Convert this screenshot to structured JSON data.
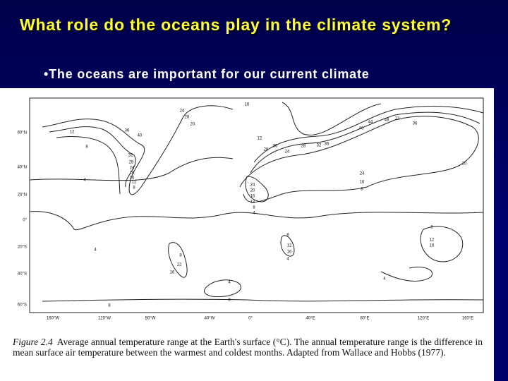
{
  "slide": {
    "title": "What role do the oceans play in the climate system?",
    "bullet": "•The oceans are important for our current climate",
    "figure": {
      "lat_labels": [
        "60°N",
        "40°N",
        "20°N",
        "0°",
        "20°S",
        "40°S",
        "60°S"
      ],
      "lon_labels": [
        "160°W",
        "120°W",
        "80°W",
        "40°W",
        "0°",
        "40°E",
        "80°E",
        "120°E",
        "160°E"
      ],
      "contour_labels": [
        "16",
        "24",
        "28",
        "20",
        "12",
        "36",
        "40",
        "8",
        "32",
        "28",
        "24",
        "20",
        "16",
        "12",
        "8",
        "4",
        "12",
        "36",
        "28",
        "24",
        "28",
        "32",
        "36",
        "40",
        "44",
        "48",
        "12",
        "36",
        "20",
        "24",
        "16",
        "8",
        "24",
        "20",
        "16",
        "12",
        "8",
        "4",
        "8",
        "12",
        "16",
        "4",
        "8",
        "12",
        "16",
        "8",
        "12",
        "16",
        "4",
        "4",
        "8",
        "8",
        "4"
      ],
      "caption_label": "Figure 2.4",
      "caption": "Average annual temperature range at the Earth's surface (°C). The annual temperature range is the difference in mean surface air temperature between the warmest and coldest months. Adapted from Wallace and Hobbs (1977)."
    }
  }
}
